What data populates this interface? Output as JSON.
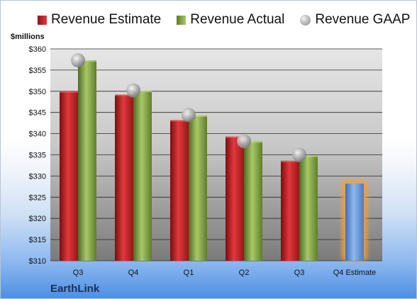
{
  "legend": {
    "estimate": "Revenue Estimate",
    "actual": "Revenue Actual",
    "gaap": "Revenue GAAP"
  },
  "unit_label": "$millions",
  "company": "EarthLink",
  "colors": {
    "estimate": "#c8202a",
    "actual": "#8fb052",
    "gaap": "#9c9c9c",
    "forecast": "#6f9fe0",
    "forecast_glow": "#f3a03a"
  },
  "chart_data": {
    "type": "bar",
    "categories": [
      "Q3",
      "Q4",
      "Q1",
      "Q2",
      "Q3",
      "Q4 Estimate"
    ],
    "series": [
      {
        "name": "Revenue Estimate",
        "values": [
          350.0,
          349.2,
          343.2,
          339.3,
          333.6,
          328.2
        ]
      },
      {
        "name": "Revenue Actual",
        "values": [
          357.3,
          350.1,
          344.3,
          338.2,
          334.8,
          null
        ]
      },
      {
        "name": "Revenue GAAP",
        "values": [
          357.3,
          350.2,
          344.4,
          338.2,
          335.0,
          null
        ]
      }
    ],
    "ylabel": "$millions",
    "ylim": [
      310,
      360
    ],
    "yticks": [
      "$310",
      "$315",
      "$320",
      "$325",
      "$330",
      "$335",
      "$340",
      "$345",
      "$350",
      "$355",
      "$360"
    ],
    "grid": true,
    "legend_position": "top"
  }
}
